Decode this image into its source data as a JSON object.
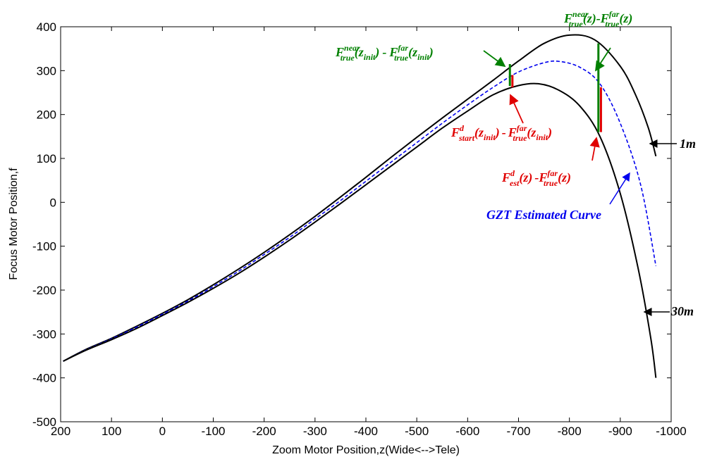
{
  "chart_data": {
    "type": "line",
    "title": "",
    "xlabel": "Zoom Motor Position,z(Wide<-->Tele)",
    "ylabel": "Focus Motor Position,f",
    "xlim": [
      200,
      -1000
    ],
    "ylim": [
      -500,
      400
    ],
    "x_reversed": true,
    "grid": false,
    "x_ticks": [
      200,
      100,
      0,
      -100,
      -200,
      -300,
      -400,
      -500,
      -600,
      -700,
      -800,
      -900,
      -1000
    ],
    "y_ticks": [
      400,
      300,
      200,
      100,
      0,
      -100,
      -200,
      -300,
      -400,
      -500
    ],
    "x_tick_labels": [
      "200",
      "100",
      "0",
      "-100",
      "-200",
      "-300",
      "-400",
      "-500",
      "-600",
      "-700",
      "-800",
      "-900",
      "-1000"
    ],
    "y_tick_labels": [
      "400",
      "300",
      "200",
      "100",
      "0",
      "-100",
      "-200",
      "-300",
      "-400",
      "-500"
    ],
    "series": [
      {
        "name": "1m",
        "color": "#000000",
        "style": "solid",
        "x": [
          195,
          150,
          100,
          50,
          0,
          -50,
          -100,
          -150,
          -200,
          -250,
          -300,
          -350,
          -400,
          -450,
          -500,
          -550,
          -600,
          -650,
          -700,
          -750,
          -800,
          -850,
          -900,
          -930,
          -955,
          -970
        ],
        "y": [
          -362,
          -335,
          -310,
          -282,
          -253,
          -222,
          -188,
          -152,
          -114,
          -74,
          -32,
          12,
          57,
          103,
          148,
          192,
          235,
          278,
          322,
          362,
          381,
          370,
          310,
          245,
          170,
          105
        ]
      },
      {
        "name": "GZT Estimated Curve",
        "color": "#0000ee",
        "style": "dashed",
        "x": [
          195,
          150,
          100,
          50,
          0,
          -50,
          -100,
          -150,
          -200,
          -250,
          -300,
          -350,
          -400,
          -450,
          -500,
          -550,
          -600,
          -650,
          -700,
          -750,
          -780,
          -820,
          -860,
          -900,
          -940,
          -970
        ],
        "y": [
          -362,
          -336,
          -311,
          -284,
          -255,
          -225,
          -192,
          -157,
          -119,
          -80,
          -38,
          4,
          48,
          92,
          136,
          180,
          222,
          262,
          297,
          318,
          321,
          308,
          270,
          180,
          40,
          -145
        ]
      },
      {
        "name": "30m",
        "color": "#000000",
        "style": "solid",
        "x": [
          195,
          150,
          100,
          50,
          0,
          -50,
          -100,
          -150,
          -200,
          -250,
          -300,
          -350,
          -400,
          -450,
          -500,
          -550,
          -600,
          -650,
          -700,
          -740,
          -780,
          -820,
          -860,
          -900,
          -935,
          -960,
          -970
        ],
        "y": [
          -362,
          -337,
          -313,
          -287,
          -258,
          -228,
          -196,
          -162,
          -125,
          -86,
          -45,
          -3,
          40,
          83,
          126,
          169,
          208,
          245,
          266,
          270,
          255,
          220,
          150,
          20,
          -150,
          -310,
          -400
        ]
      }
    ],
    "markers": [
      {
        "kind": "green",
        "x": -683,
        "y1": 315,
        "y2": 265,
        "color": "#008000"
      },
      {
        "kind": "red",
        "x": -688,
        "y1": 290,
        "y2": 262,
        "color": "#e00000"
      },
      {
        "kind": "green",
        "x": -857,
        "y1": 362,
        "y2": 160,
        "color": "#008000"
      },
      {
        "kind": "red",
        "x": -862,
        "y1": 262,
        "y2": 160,
        "color": "#e00000"
      }
    ],
    "annotations": {
      "green_top": {
        "base1": "F",
        "sup1": "near",
        "sub1": "true",
        "arg1": "(z)",
        "sep": "-",
        "base2": "F",
        "sup2": "far",
        "sub2": "true",
        "arg2": "(z)",
        "color": "#008000"
      },
      "green_left": {
        "base1": "F",
        "sup1": "near",
        "sub1": "true",
        "argpre": "(z",
        "argsub": "init",
        "argpost": ")",
        "sep": "-",
        "base2": "F",
        "sup2": "far",
        "sub2": "true",
        "arg2pre": "(z",
        "arg2sub": "init",
        "arg2post": ")",
        "color": "#008000"
      },
      "red_start": {
        "base1": "F",
        "sup1": "d",
        "sub1": "start",
        "argpre": "(z",
        "argsub": "init",
        "argpost": ")",
        "sep": "-",
        "base2": "F",
        "sup2": "far",
        "sub2": "true",
        "arg2pre": "(z",
        "arg2sub": "init",
        "arg2post": ")",
        "color": "#e00000"
      },
      "red_est": {
        "base1": "F",
        "sup1": "d",
        "sub1": "est",
        "arg1": "(z)",
        "sep": "-",
        "base2": "F",
        "sup2": "far",
        "sub2": "true",
        "arg2": "(z)",
        "color": "#e00000"
      },
      "label_1m": "1m",
      "label_30m": "30m",
      "label_gzt": "GZT Estimated Curve",
      "label_color_blue": "#0000ee"
    }
  }
}
